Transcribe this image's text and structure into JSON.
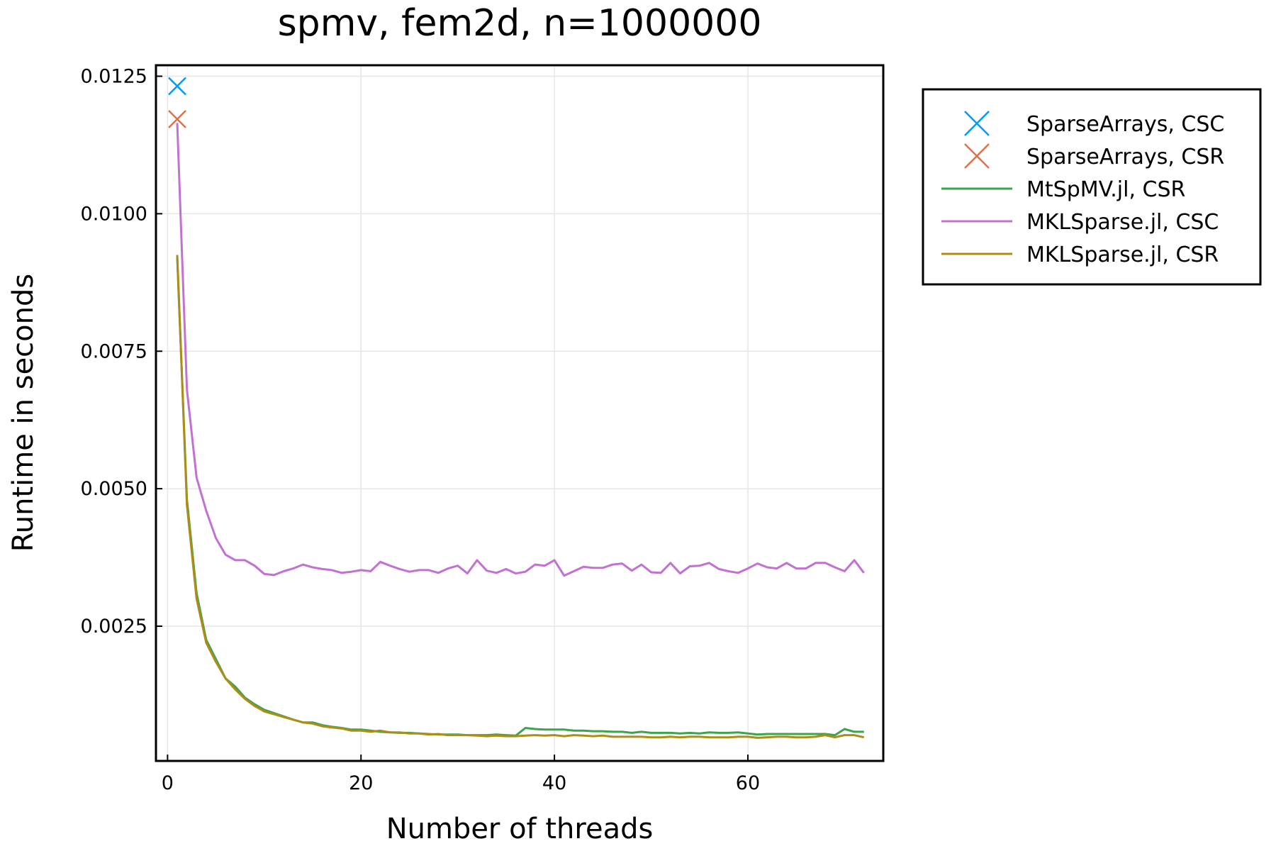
{
  "chart_data": {
    "type": "line",
    "title": "spmv, fem2d, n=1000000",
    "xlabel": "Number of threads",
    "ylabel": "Runtime in seconds",
    "xlim": [
      -1.2,
      74
    ],
    "ylim": [
      5e-05,
      0.0127
    ],
    "xticks": [
      0,
      20,
      40,
      60
    ],
    "xtick_labels": [
      "0",
      "20",
      "40",
      "60"
    ],
    "yticks": [
      0.0025,
      0.005,
      0.0075,
      0.01,
      0.0125
    ],
    "ytick_labels": [
      "0.0025",
      "0.0050",
      "0.0075",
      "0.0100",
      "0.0125"
    ],
    "grid": true,
    "legend_position": "outside-right-top",
    "series": [
      {
        "name": "SparseArrays, CSC",
        "kind": "marker",
        "marker": "x",
        "color": "#009af9",
        "x": [
          1
        ],
        "y": [
          0.01232
        ]
      },
      {
        "name": "SparseArrays, CSR",
        "kind": "marker",
        "marker": "x",
        "color": "#e26f46",
        "x": [
          1
        ],
        "y": [
          0.01172
        ]
      },
      {
        "name": "MtSpMV.jl, CSR",
        "kind": "line",
        "color": "#3da44d",
        "x": [
          1,
          2,
          3,
          4,
          5,
          6,
          7,
          8,
          9,
          10,
          11,
          12,
          13,
          14,
          15,
          16,
          17,
          18,
          19,
          20,
          21,
          22,
          23,
          24,
          25,
          26,
          27,
          28,
          29,
          30,
          31,
          32,
          33,
          34,
          35,
          36,
          37,
          38,
          39,
          40,
          41,
          42,
          43,
          44,
          45,
          46,
          47,
          48,
          49,
          50,
          51,
          52,
          53,
          54,
          55,
          56,
          57,
          58,
          59,
          60,
          61,
          62,
          63,
          64,
          65,
          66,
          67,
          68,
          69,
          70,
          71,
          72
        ],
        "y": [
          0.0092,
          0.0048,
          0.0031,
          0.00225,
          0.0019,
          0.00155,
          0.0014,
          0.0012,
          0.00108,
          0.00098,
          0.00092,
          0.00086,
          0.0008,
          0.00075,
          0.00075,
          0.0007,
          0.00067,
          0.00065,
          0.00062,
          0.00062,
          0.0006,
          0.00058,
          0.00057,
          0.00056,
          0.00056,
          0.00055,
          0.00054,
          0.00053,
          0.00053,
          0.00053,
          0.00052,
          0.00052,
          0.00052,
          0.00053,
          0.00052,
          0.00051,
          0.00065,
          0.00063,
          0.00062,
          0.00062,
          0.00062,
          0.0006,
          0.0006,
          0.00059,
          0.00059,
          0.00058,
          0.00058,
          0.00056,
          0.00058,
          0.00056,
          0.00056,
          0.00056,
          0.00055,
          0.00056,
          0.00055,
          0.00057,
          0.00056,
          0.00056,
          0.00057,
          0.00055,
          0.00053,
          0.00054,
          0.00054,
          0.00054,
          0.00054,
          0.00054,
          0.00054,
          0.00054,
          0.00052,
          0.00063,
          0.00058,
          0.00058
        ]
      },
      {
        "name": "MKLSparse.jl, CSC",
        "kind": "line",
        "color": "#c271d2",
        "x": [
          1,
          2,
          3,
          4,
          5,
          6,
          7,
          8,
          9,
          10,
          11,
          12,
          13,
          14,
          15,
          16,
          17,
          18,
          19,
          20,
          21,
          22,
          23,
          24,
          25,
          26,
          27,
          28,
          29,
          30,
          31,
          32,
          33,
          34,
          35,
          36,
          37,
          38,
          39,
          40,
          41,
          42,
          43,
          44,
          45,
          46,
          47,
          48,
          49,
          50,
          51,
          52,
          53,
          54,
          55,
          56,
          57,
          58,
          59,
          60,
          61,
          62,
          63,
          64,
          65,
          66,
          67,
          68,
          69,
          70,
          71,
          72
        ],
        "y": [
          0.01165,
          0.0068,
          0.0052,
          0.0046,
          0.0041,
          0.0038,
          0.0037,
          0.0037,
          0.0036,
          0.00345,
          0.00343,
          0.0035,
          0.00355,
          0.00362,
          0.00357,
          0.00354,
          0.00352,
          0.00347,
          0.00349,
          0.00352,
          0.0035,
          0.00367,
          0.0036,
          0.00354,
          0.00349,
          0.00352,
          0.00352,
          0.00347,
          0.00355,
          0.0036,
          0.00346,
          0.0037,
          0.00351,
          0.00347,
          0.00354,
          0.00346,
          0.00349,
          0.00362,
          0.0036,
          0.0037,
          0.00342,
          0.0035,
          0.00358,
          0.00356,
          0.00356,
          0.00362,
          0.00364,
          0.00351,
          0.00362,
          0.00348,
          0.00347,
          0.00365,
          0.00346,
          0.00359,
          0.0036,
          0.00365,
          0.00354,
          0.0035,
          0.00347,
          0.00355,
          0.00364,
          0.00357,
          0.00355,
          0.00365,
          0.00355,
          0.00355,
          0.00365,
          0.00365,
          0.00357,
          0.0035,
          0.0037,
          0.00347
        ]
      },
      {
        "name": "MKLSparse.jl, CSR",
        "kind": "line",
        "color": "#ac8d18",
        "x": [
          1,
          2,
          3,
          4,
          5,
          6,
          7,
          8,
          9,
          10,
          11,
          12,
          13,
          14,
          15,
          16,
          17,
          18,
          19,
          20,
          21,
          22,
          23,
          24,
          25,
          26,
          27,
          28,
          29,
          30,
          31,
          32,
          33,
          34,
          35,
          36,
          37,
          38,
          39,
          40,
          41,
          42,
          43,
          44,
          45,
          46,
          47,
          48,
          49,
          50,
          51,
          52,
          53,
          54,
          55,
          56,
          57,
          58,
          59,
          60,
          61,
          62,
          63,
          64,
          65,
          66,
          67,
          68,
          69,
          70,
          71,
          72
        ],
        "y": [
          0.00925,
          0.0047,
          0.003,
          0.0022,
          0.00185,
          0.00155,
          0.00135,
          0.00118,
          0.00105,
          0.00095,
          0.0009,
          0.00085,
          0.0008,
          0.00075,
          0.00073,
          0.00068,
          0.00066,
          0.00064,
          0.0006,
          0.0006,
          0.00058,
          0.0006,
          0.00057,
          0.00057,
          0.00055,
          0.00055,
          0.00053,
          0.00054,
          0.00052,
          0.00052,
          0.00052,
          0.00051,
          0.0005,
          0.00051,
          0.0005,
          0.0005,
          0.00051,
          0.00052,
          0.00051,
          0.00052,
          0.0005,
          0.00052,
          0.00051,
          0.0005,
          0.00051,
          0.00049,
          0.00049,
          0.00049,
          0.00049,
          0.00048,
          0.00048,
          0.00049,
          0.00048,
          0.00049,
          0.00049,
          0.00048,
          0.00048,
          0.00048,
          0.00049,
          0.00049,
          0.00047,
          0.00048,
          0.00049,
          0.00049,
          0.00048,
          0.00048,
          0.00049,
          0.00052,
          0.00048,
          0.00052,
          0.00052,
          0.00048
        ]
      }
    ]
  }
}
